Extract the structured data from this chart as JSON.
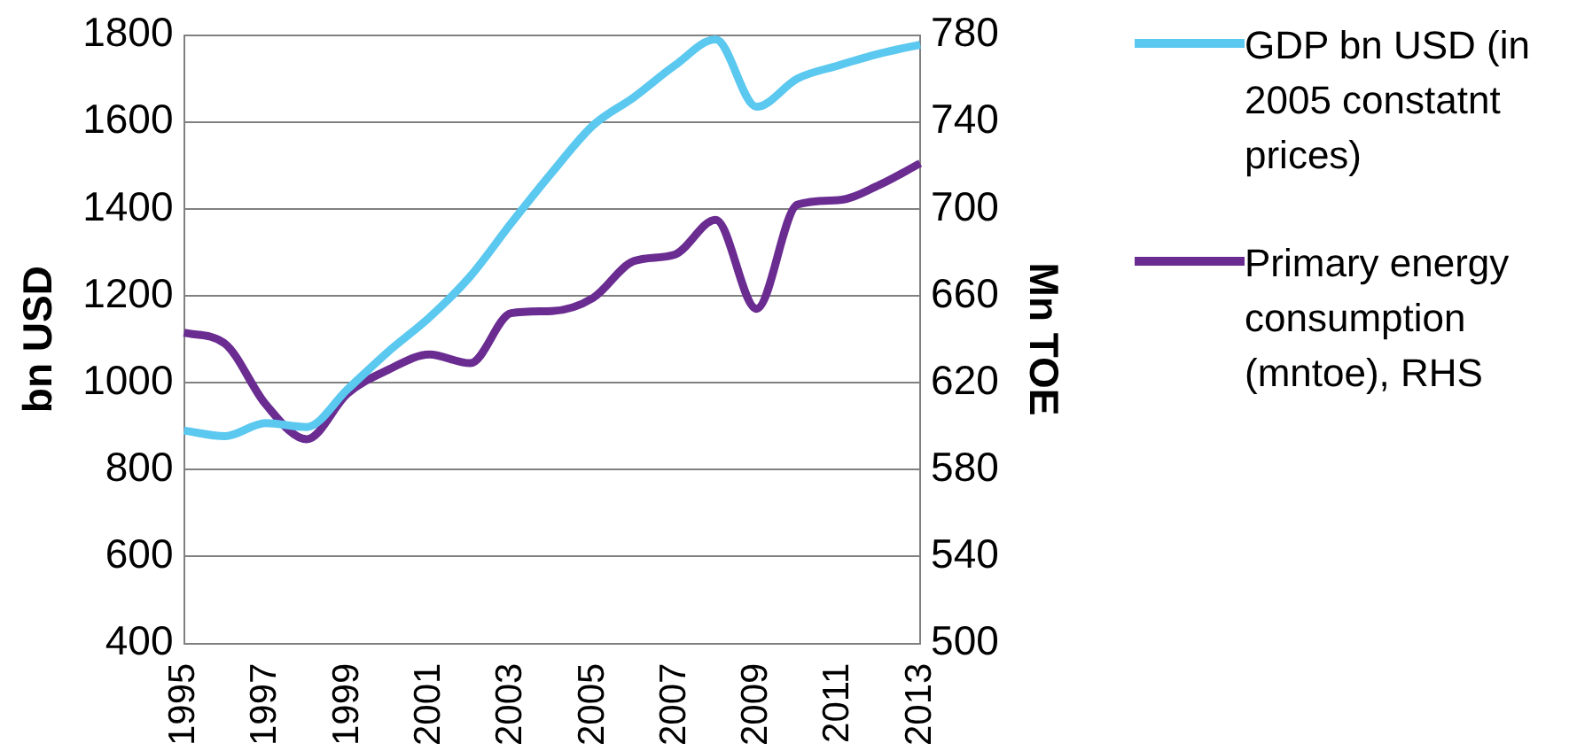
{
  "chart_data": {
    "type": "line",
    "categories": [
      "1995",
      null,
      "1997",
      null,
      "1999",
      null,
      "2001",
      null,
      "2003",
      null,
      "2005",
      null,
      "2007",
      null,
      "2009",
      null,
      "2011",
      null,
      "2013"
    ],
    "ylabel": "bn USD",
    "y2label": "Mn TOE",
    "ylim": [
      400,
      1800
    ],
    "yticks": [
      400,
      600,
      800,
      1000,
      1200,
      1400,
      1600,
      1800
    ],
    "y2lim": [
      500,
      780
    ],
    "y2ticks": [
      500,
      540,
      580,
      620,
      660,
      700,
      740,
      780
    ],
    "grid": "y",
    "legend": "right",
    "marker": "none",
    "line_style": "solid",
    "series": [
      {
        "name": "GDP bn USD (in 2005 constatnt prices)",
        "color": "#5bc8f0",
        "values": [
          890,
          877,
          907,
          898,
          985,
          1072,
          1150,
          1245,
          1367,
          1484,
          1592,
          1657,
          1730,
          1790,
          1635,
          1700,
          1730,
          1757,
          1778
        ]
      },
      {
        "name": "Primary energy consumption (mntoe), RHS",
        "color": "#6a2c91",
        "axis": "y2",
        "values": [
          643,
          638,
          610,
          594,
          615,
          626,
          633,
          629,
          652,
          653,
          659,
          676,
          679,
          695,
          654,
          702,
          704,
          711,
          721
        ]
      }
    ]
  }
}
